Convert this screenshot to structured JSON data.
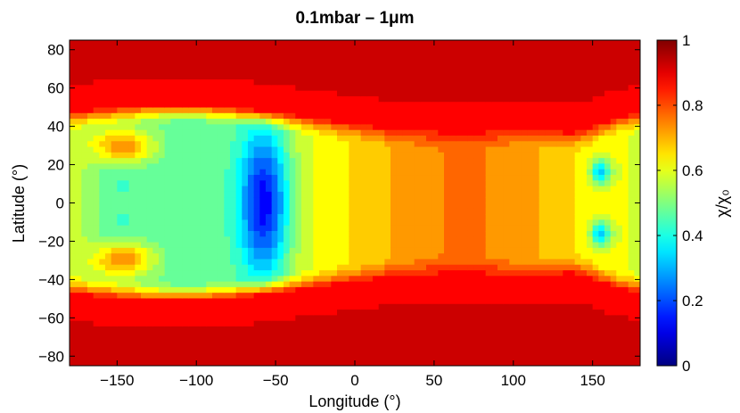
{
  "chart_data": {
    "type": "heatmap",
    "title": "0.1mbar – 1μm",
    "xlabel": "Longitude (°)",
    "ylabel": "Latitude (°)",
    "colorbar_label": "χ/χ₀",
    "colormap": "jet",
    "xlim": [
      -180,
      180
    ],
    "ylim": [
      -85,
      85
    ],
    "clim": [
      0,
      1
    ],
    "xticks": [
      -150,
      -100,
      -50,
      0,
      50,
      100,
      150
    ],
    "xtick_labels": [
      "−150",
      "−100",
      "−50",
      "0",
      "50",
      "100",
      "150"
    ],
    "yticks": [
      80,
      60,
      40,
      20,
      0,
      -20,
      -40,
      -60,
      -80
    ],
    "ytick_labels": [
      "80",
      "60",
      "40",
      "20",
      "0",
      "−20",
      "−40",
      "−60",
      "−80"
    ],
    "cticks": [
      0,
      0.2,
      0.4,
      0.6,
      0.8,
      1
    ],
    "ctick_labels": [
      "0",
      "0.2",
      "0.4",
      "0.6",
      "0.8",
      "1"
    ],
    "levels": 20,
    "regions": [
      {
        "feature": "polar band",
        "lat_range": [
          45,
          85
        ],
        "value": 0.9
      },
      {
        "feature": "polar band",
        "lat_range": [
          -85,
          -45
        ],
        "value": 0.9
      },
      {
        "feature": "equatorial minimum",
        "lon": -55,
        "lat": 0,
        "value": 0.15
      },
      {
        "feature": "mid-latitude maximum",
        "lon": -145,
        "lat": 28,
        "value": 0.8
      },
      {
        "feature": "mid-latitude maximum",
        "lon": -145,
        "lat": -28,
        "value": 0.8
      },
      {
        "feature": "equatorial plateau",
        "lon_range": [
          50,
          130
        ],
        "value": 0.72
      },
      {
        "feature": "local minimum",
        "lon": 155,
        "lat": 17,
        "value": 0.25
      },
      {
        "feature": "local minimum",
        "lon": 155,
        "lat": -15,
        "value": 0.25
      }
    ]
  }
}
